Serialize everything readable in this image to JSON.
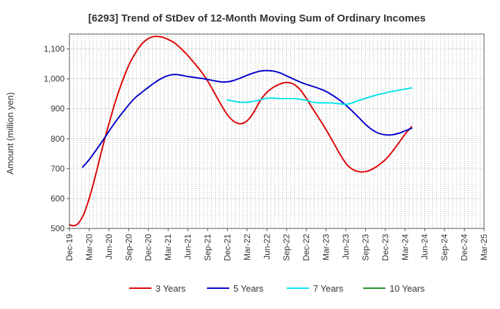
{
  "chart_data": {
    "type": "line",
    "title": "[6293]  Trend of StDev of 12-Month Moving Sum of Ordinary Incomes",
    "xlabel": "",
    "ylabel": "Amount (million yen)",
    "ylim": [
      500,
      1150
    ],
    "yticks": [
      500,
      600,
      700,
      800,
      900,
      1000,
      1100
    ],
    "ytick_labels": [
      "500",
      "600",
      "700",
      "800",
      "900",
      "1,000",
      "1,100"
    ],
    "xtick_labels": [
      "Dec-19",
      "Mar-20",
      "Jun-20",
      "Sep-20",
      "Dec-20",
      "Mar-21",
      "Jun-21",
      "Sep-21",
      "Dec-21",
      "Mar-22",
      "Jun-22",
      "Sep-22",
      "Dec-22",
      "Mar-23",
      "Jun-23",
      "Sep-23",
      "Dec-23",
      "Mar-24",
      "Jun-24",
      "Sep-24",
      "Dec-24",
      "Mar-25"
    ],
    "grid": true,
    "legend_position": "bottom",
    "series": [
      {
        "name": "3 Years",
        "color": "#dd0000",
        "points": [
          [
            0,
            512
          ],
          [
            0.33,
            511
          ],
          [
            0.67,
            540
          ],
          [
            1,
            600
          ],
          [
            1.33,
            680
          ],
          [
            1.67,
            770
          ],
          [
            2,
            850
          ],
          [
            2.33,
            925
          ],
          [
            2.67,
            990
          ],
          [
            3,
            1045
          ],
          [
            3.33,
            1085
          ],
          [
            3.67,
            1117
          ],
          [
            4,
            1135
          ],
          [
            4.33,
            1142
          ],
          [
            4.67,
            1140
          ],
          [
            5,
            1132
          ],
          [
            5.33,
            1120
          ],
          [
            5.67,
            1100
          ],
          [
            6,
            1078
          ],
          [
            6.33,
            1052
          ],
          [
            6.67,
            1025
          ],
          [
            7,
            993
          ],
          [
            7.33,
            955
          ],
          [
            7.67,
            915
          ],
          [
            8,
            880
          ],
          [
            8.33,
            858
          ],
          [
            8.67,
            850
          ],
          [
            9,
            860
          ],
          [
            9.33,
            888
          ],
          [
            9.67,
            928
          ],
          [
            10,
            955
          ],
          [
            10.33,
            972
          ],
          [
            10.67,
            983
          ],
          [
            11,
            988
          ],
          [
            11.33,
            983
          ],
          [
            11.67,
            965
          ],
          [
            12,
            935
          ],
          [
            12.33,
            900
          ],
          [
            12.67,
            865
          ],
          [
            13,
            830
          ],
          [
            13.33,
            792
          ],
          [
            13.67,
            752
          ],
          [
            14,
            718
          ],
          [
            14.33,
            698
          ],
          [
            14.67,
            690
          ],
          [
            15,
            690
          ],
          [
            15.33,
            698
          ],
          [
            15.67,
            712
          ],
          [
            16,
            730
          ],
          [
            16.33,
            755
          ],
          [
            16.67,
            785
          ],
          [
            17,
            815
          ],
          [
            17.33,
            840
          ]
        ]
      },
      {
        "name": "5 Years",
        "color": "#0000cc",
        "points": [
          [
            0.67,
            705
          ],
          [
            1,
            730
          ],
          [
            1.33,
            760
          ],
          [
            1.67,
            792
          ],
          [
            2,
            825
          ],
          [
            2.33,
            856
          ],
          [
            2.67,
            886
          ],
          [
            3,
            913
          ],
          [
            3.33,
            937
          ],
          [
            3.67,
            955
          ],
          [
            4,
            972
          ],
          [
            4.33,
            988
          ],
          [
            4.67,
            1002
          ],
          [
            5,
            1011
          ],
          [
            5.33,
            1015
          ],
          [
            5.67,
            1012
          ],
          [
            6,
            1008
          ],
          [
            6.33,
            1005
          ],
          [
            6.67,
            1002
          ],
          [
            7,
            998
          ],
          [
            7.33,
            994
          ],
          [
            7.67,
            990
          ],
          [
            8,
            990
          ],
          [
            8.33,
            995
          ],
          [
            8.67,
            1003
          ],
          [
            9,
            1012
          ],
          [
            9.33,
            1020
          ],
          [
            9.67,
            1026
          ],
          [
            10,
            1028
          ],
          [
            10.33,
            1026
          ],
          [
            10.67,
            1020
          ],
          [
            11,
            1010
          ],
          [
            11.33,
            1000
          ],
          [
            11.67,
            990
          ],
          [
            12,
            982
          ],
          [
            12.33,
            975
          ],
          [
            12.67,
            967
          ],
          [
            13,
            958
          ],
          [
            13.33,
            945
          ],
          [
            13.67,
            930
          ],
          [
            14,
            912
          ],
          [
            14.33,
            892
          ],
          [
            14.67,
            870
          ],
          [
            15,
            848
          ],
          [
            15.33,
            830
          ],
          [
            15.67,
            818
          ],
          [
            16,
            813
          ],
          [
            16.33,
            813
          ],
          [
            16.67,
            818
          ],
          [
            17,
            826
          ],
          [
            17.33,
            835
          ]
        ]
      },
      {
        "name": "7 Years",
        "color": "#00e5ee",
        "points": [
          [
            8,
            930
          ],
          [
            8.33,
            925
          ],
          [
            8.67,
            922
          ],
          [
            9,
            922
          ],
          [
            9.33,
            925
          ],
          [
            9.67,
            930
          ],
          [
            10,
            935
          ],
          [
            10.33,
            936
          ],
          [
            10.67,
            934
          ],
          [
            11,
            934
          ],
          [
            11.33,
            934
          ],
          [
            11.67,
            932
          ],
          [
            12,
            928
          ],
          [
            12.33,
            922
          ],
          [
            12.67,
            920
          ],
          [
            13,
            920
          ],
          [
            13.33,
            919
          ],
          [
            13.67,
            917
          ],
          [
            14,
            915
          ],
          [
            14.33,
            920
          ],
          [
            14.67,
            928
          ],
          [
            15,
            935
          ],
          [
            15.33,
            942
          ],
          [
            15.67,
            948
          ],
          [
            16,
            953
          ],
          [
            16.33,
            958
          ],
          [
            16.67,
            962
          ],
          [
            17,
            966
          ],
          [
            17.33,
            970
          ]
        ]
      },
      {
        "name": "10 Years",
        "color": "#228b22",
        "points": []
      }
    ]
  }
}
